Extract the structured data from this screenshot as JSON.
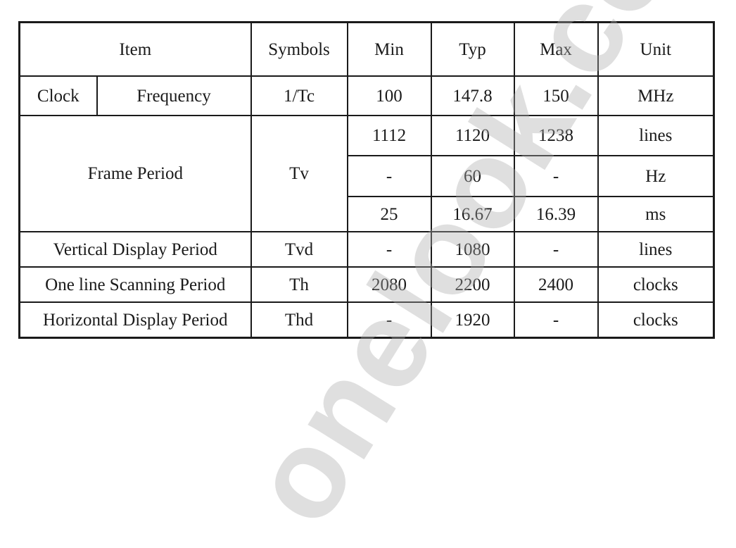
{
  "watermark": "onelook.com",
  "table": {
    "headers": {
      "item": "Item",
      "symbols": "Symbols",
      "min": "Min",
      "typ": "Typ",
      "max": "Max",
      "unit": "Unit"
    },
    "clock": {
      "group": "Clock",
      "item": "Frequency",
      "symbol": "1/Tc",
      "min": "100",
      "typ": "147.8",
      "max": "150",
      "unit": "MHz"
    },
    "frame_period": {
      "item": "Frame Period",
      "symbol": "Tv",
      "rows": [
        {
          "min": "1112",
          "typ": "1120",
          "max": "1238",
          "unit": "lines"
        },
        {
          "min": "-",
          "typ": "60",
          "max": "-",
          "unit": "Hz"
        },
        {
          "min": "25",
          "typ": "16.67",
          "max": "16.39",
          "unit": "ms"
        }
      ]
    },
    "vertical_display_period": {
      "item": "Vertical Display Period",
      "symbol": "Tvd",
      "min": "-",
      "typ": "1080",
      "max": "-",
      "unit": "lines"
    },
    "one_line_scanning_period": {
      "item": "One line Scanning Period",
      "symbol": "Th",
      "min": "2080",
      "typ": "2200",
      "max": "2400",
      "unit": "clocks"
    },
    "horizontal_display_period": {
      "item": "Horizontal Display Period",
      "symbol": "Thd",
      "min": "-",
      "typ": "1920",
      "max": "-",
      "unit": "clocks"
    }
  }
}
